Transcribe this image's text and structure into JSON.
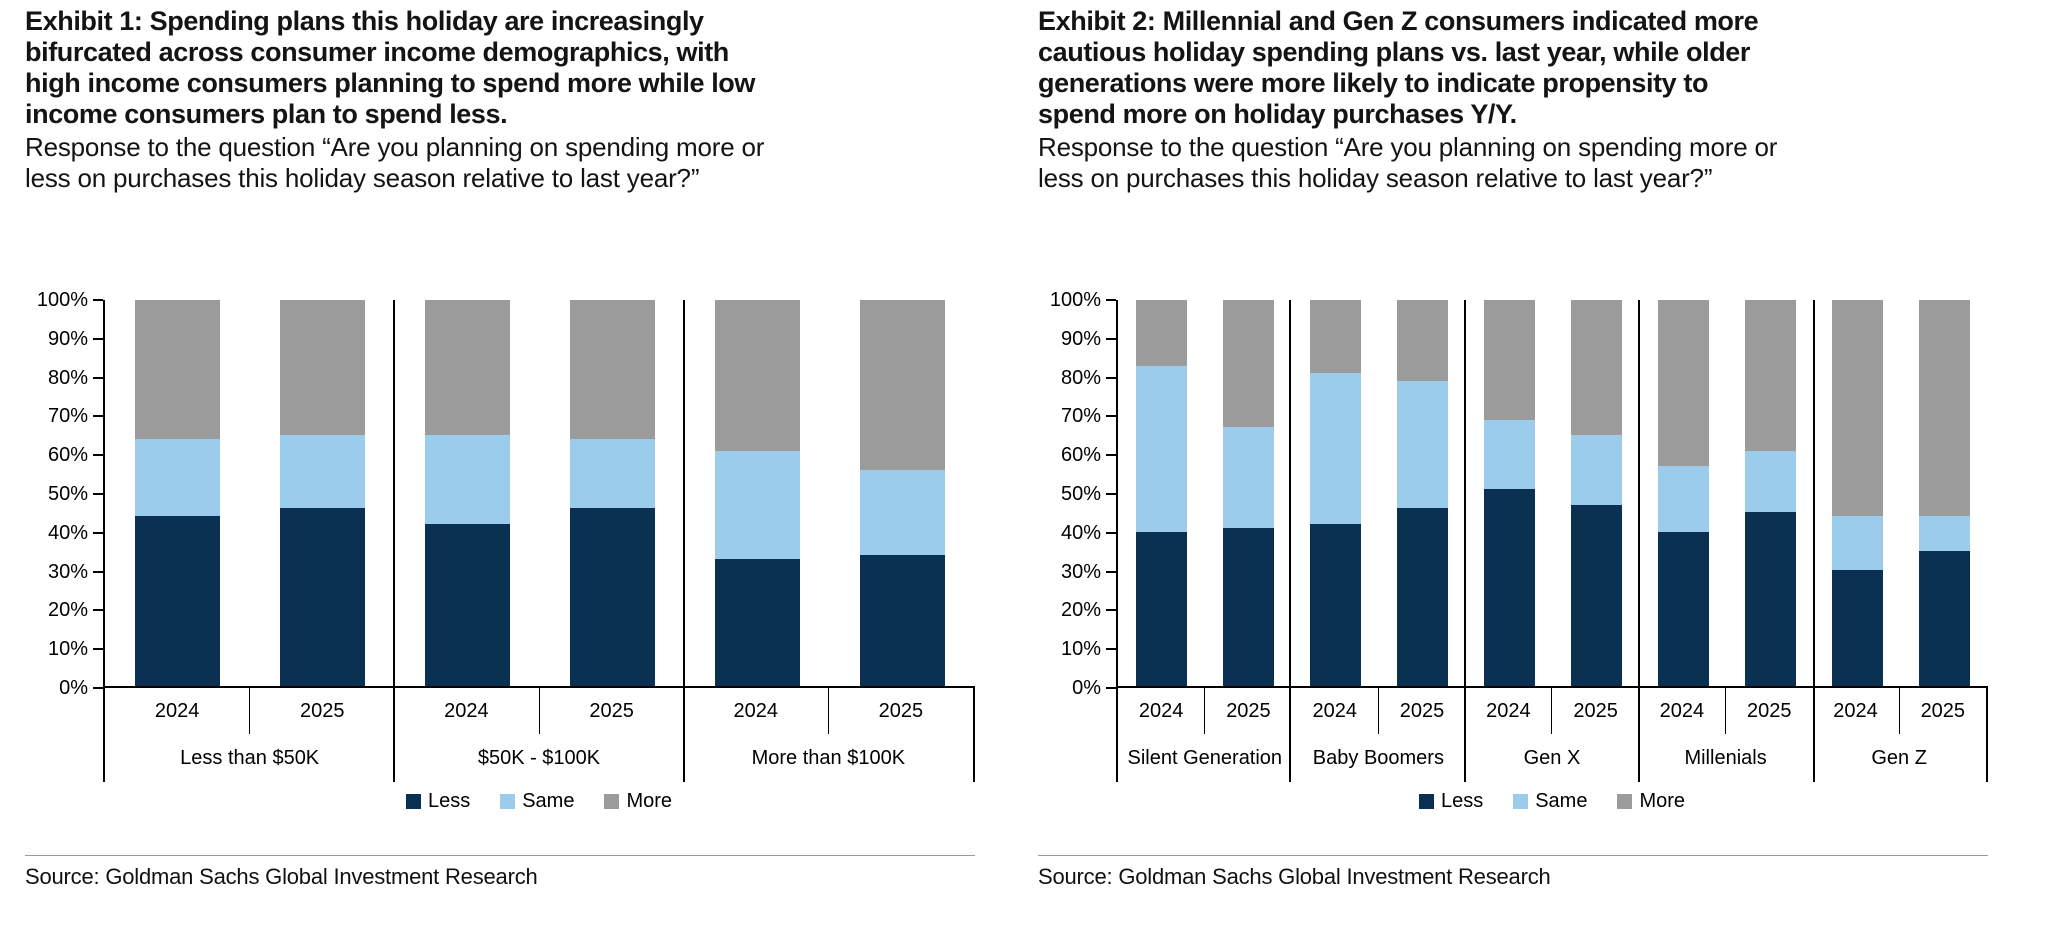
{
  "page": {
    "background": "#ffffff"
  },
  "colors": {
    "less": "#0a3152",
    "same": "#9cccec",
    "more": "#9b9b9b",
    "axis": "#000000",
    "divider": "#9a9a9a"
  },
  "exhibits": [
    {
      "title": "Exhibit 1: Spending plans this holiday are increasingly\nbifurcated across consumer income demographics, with\nhigh income consumers planning to spend more while low\nincome consumers plan to spend less.",
      "subtitle": "Response to the question “Are you planning on spending more or\nless on purchases this holiday season relative to last year?”",
      "source": "Source: Goldman Sachs Global Investment Research",
      "chart_data": {
        "type": "bar",
        "stacked": true,
        "unit": "percent",
        "ylim": [
          0,
          100
        ],
        "ytick_labels": [
          "100%",
          "90%",
          "80%",
          "70%",
          "60%",
          "50%",
          "40%",
          "30%",
          "20%",
          "10%",
          "0%"
        ],
        "year_labels": [
          "2024",
          "2025"
        ],
        "group_labels": [
          "Less than $50K",
          "$50K - $100K",
          "More than $100K"
        ],
        "legend_position": "bottom",
        "series": [
          {
            "name": "Less",
            "color": "#0a3152",
            "values": [
              44,
              46,
              42,
              46,
              33,
              34
            ]
          },
          {
            "name": "Same",
            "color": "#9cccec",
            "values": [
              20,
              19,
              23,
              18,
              28,
              22
            ]
          },
          {
            "name": "More",
            "color": "#9b9b9b",
            "values": [
              36,
              35,
              35,
              36,
              39,
              44
            ]
          }
        ]
      }
    },
    {
      "title": "Exhibit 2: Millennial and Gen Z consumers indicated more\ncautious holiday spending plans vs. last year, while older\ngenerations were more likely to indicate propensity to\nspend more on holiday purchases Y/Y.",
      "subtitle": "Response to the question “Are you planning on spending more or\nless on purchases this holiday season relative to last year?”",
      "source": "Source: Goldman Sachs Global Investment Research",
      "chart_data": {
        "type": "bar",
        "stacked": true,
        "unit": "percent",
        "ylim": [
          0,
          100
        ],
        "ytick_labels": [
          "100%",
          "90%",
          "80%",
          "70%",
          "60%",
          "50%",
          "40%",
          "30%",
          "20%",
          "10%",
          "0%"
        ],
        "year_labels": [
          "2024",
          "2025"
        ],
        "group_labels": [
          "Silent Generation",
          "Baby Boomers",
          "Gen X",
          "Millenials",
          "Gen Z"
        ],
        "legend_position": "bottom",
        "series": [
          {
            "name": "Less",
            "color": "#0a3152",
            "values": [
              40,
              41,
              42,
              46,
              51,
              47,
              40,
              45,
              30,
              35
            ]
          },
          {
            "name": "Same",
            "color": "#9cccec",
            "values": [
              43,
              26,
              39,
              33,
              18,
              18,
              17,
              16,
              14,
              9
            ]
          },
          {
            "name": "More",
            "color": "#9b9b9b",
            "values": [
              17,
              33,
              19,
              21,
              31,
              35,
              43,
              39,
              56,
              56
            ]
          }
        ]
      }
    }
  ]
}
